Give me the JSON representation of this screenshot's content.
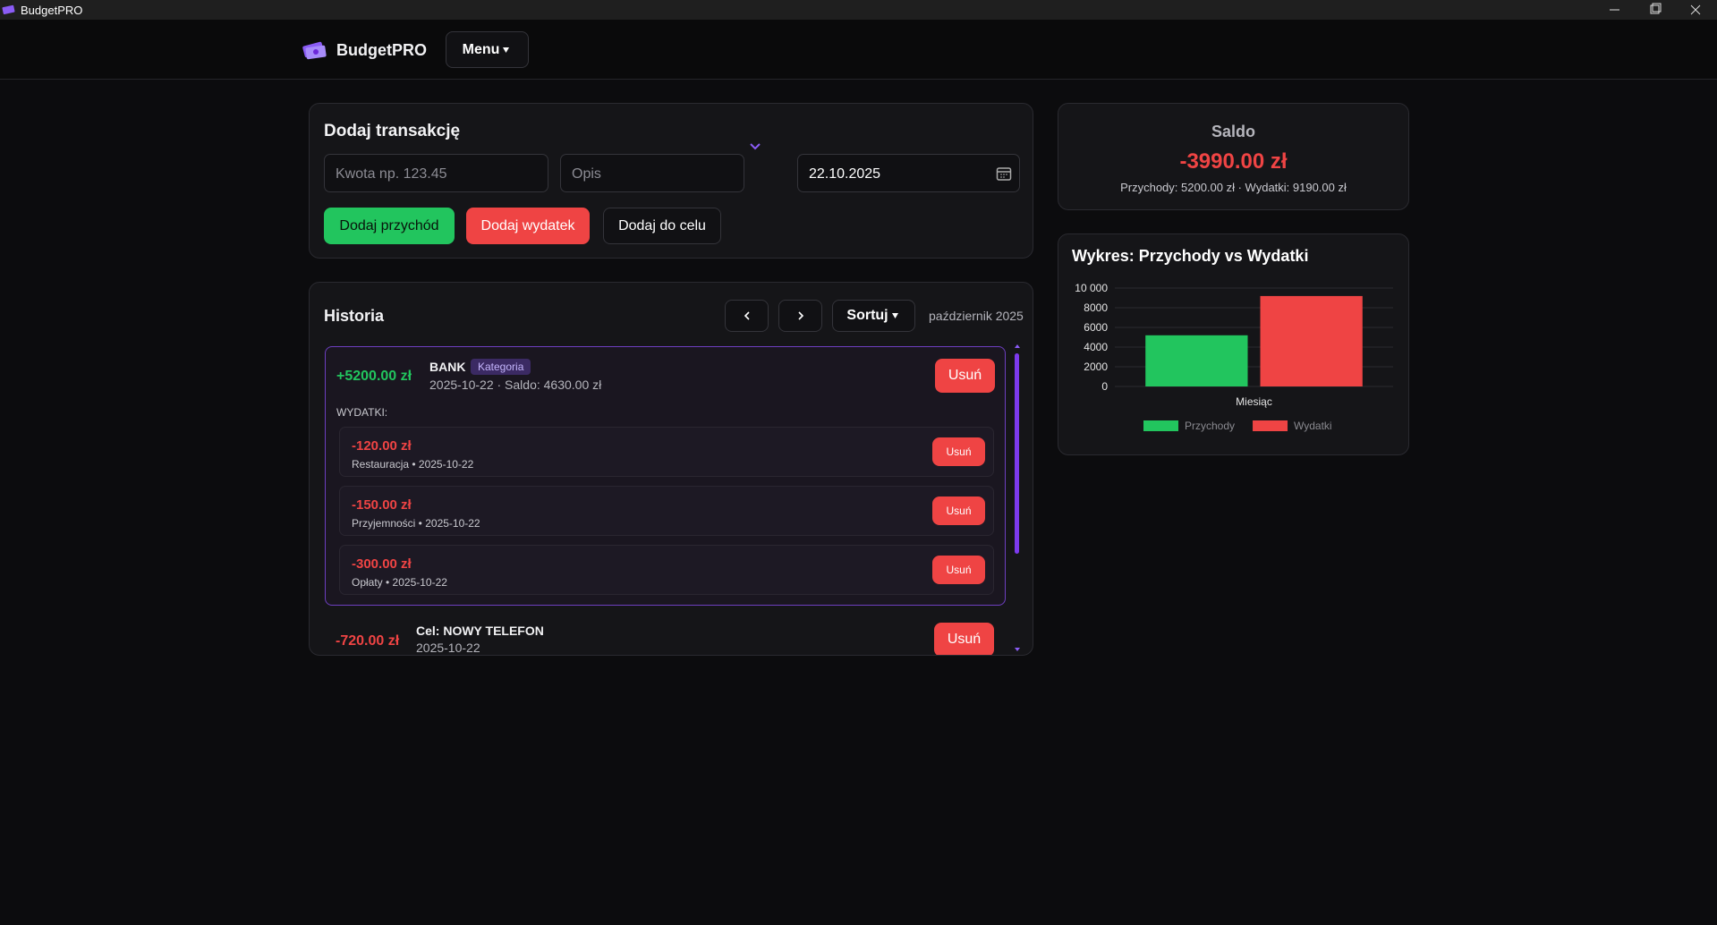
{
  "window": {
    "title": "BudgetPRO"
  },
  "header": {
    "brand": "BudgetPRO",
    "menu": "Menu"
  },
  "add_form": {
    "title": "Dodaj transakcję",
    "amount_placeholder": "Kwota np. 123.45",
    "description_placeholder": "Opis",
    "date": "22.10.2025",
    "buttons": [
      "Dodaj przychód",
      "Dodaj wydatek",
      "Dodaj do celu"
    ]
  },
  "history": {
    "title": "Historia",
    "sort": "Sortuj",
    "period": "październik 2025",
    "entries": [
      {
        "amount": "+5200.00 zł",
        "name": "BANK",
        "badge": "Kategoria",
        "meta": "2025-10-22 · Saldo: 4630.00 zł",
        "delete": "Usuń",
        "expenses_label": "WYDATKI:",
        "expenses": [
          {
            "amount": "-120.00 zł",
            "meta": "Restauracja • 2025-10-22",
            "delete": "Usuń"
          },
          {
            "amount": "-150.00 zł",
            "meta": "Przyjemności • 2025-10-22",
            "delete": "Usuń"
          },
          {
            "amount": "-300.00 zł",
            "meta": "Opłaty • 2025-10-22",
            "delete": "Usuń"
          }
        ]
      },
      {
        "amount": "-720.00 zł",
        "name": "Cel: NOWY TELEFON",
        "meta": "2025-10-22",
        "delete": "Usuń"
      }
    ]
  },
  "balance": {
    "title": "Saldo",
    "amount": "-3990.00 zł",
    "summary": "Przychody: 5200.00 zł · Wydatki: 9190.00 zł"
  },
  "chart_data": {
    "type": "bar",
    "title": "Wykres: Przychody vs Wydatki",
    "categories": [
      "Miesiąc"
    ],
    "series": [
      {
        "name": "Przychody",
        "color": "#22c55e",
        "values": [
          5200
        ]
      },
      {
        "name": "Wydatki",
        "color": "#ef4444",
        "values": [
          9190
        ]
      }
    ],
    "ylim": [
      0,
      10000
    ],
    "yticks": [
      0,
      2000,
      4000,
      6000,
      8000,
      {
        "value": 10000,
        "label": "10 000"
      }
    ],
    "grid": true
  }
}
